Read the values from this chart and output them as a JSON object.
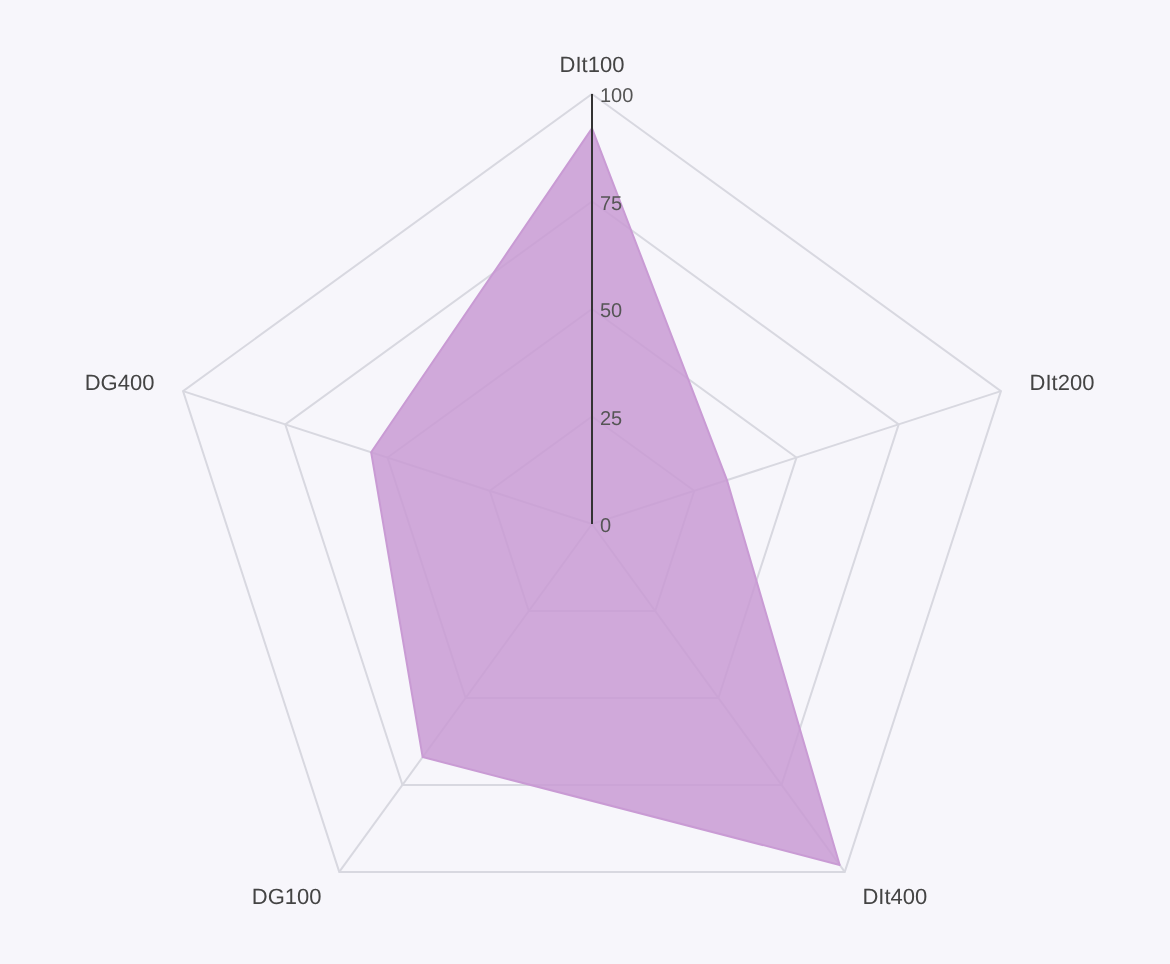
{
  "chart_data": {
    "type": "radar",
    "categories": [
      "DIt100",
      "DIt200",
      "DIt400",
      "DG100",
      "DG400"
    ],
    "series": [
      {
        "color": "#c99bd4",
        "values": [
          92,
          33,
          98,
          67,
          54
        ]
      }
    ],
    "ylim": [
      0,
      100
    ],
    "yticks": [
      0,
      25,
      50,
      75,
      100
    ],
    "grid": true
  }
}
